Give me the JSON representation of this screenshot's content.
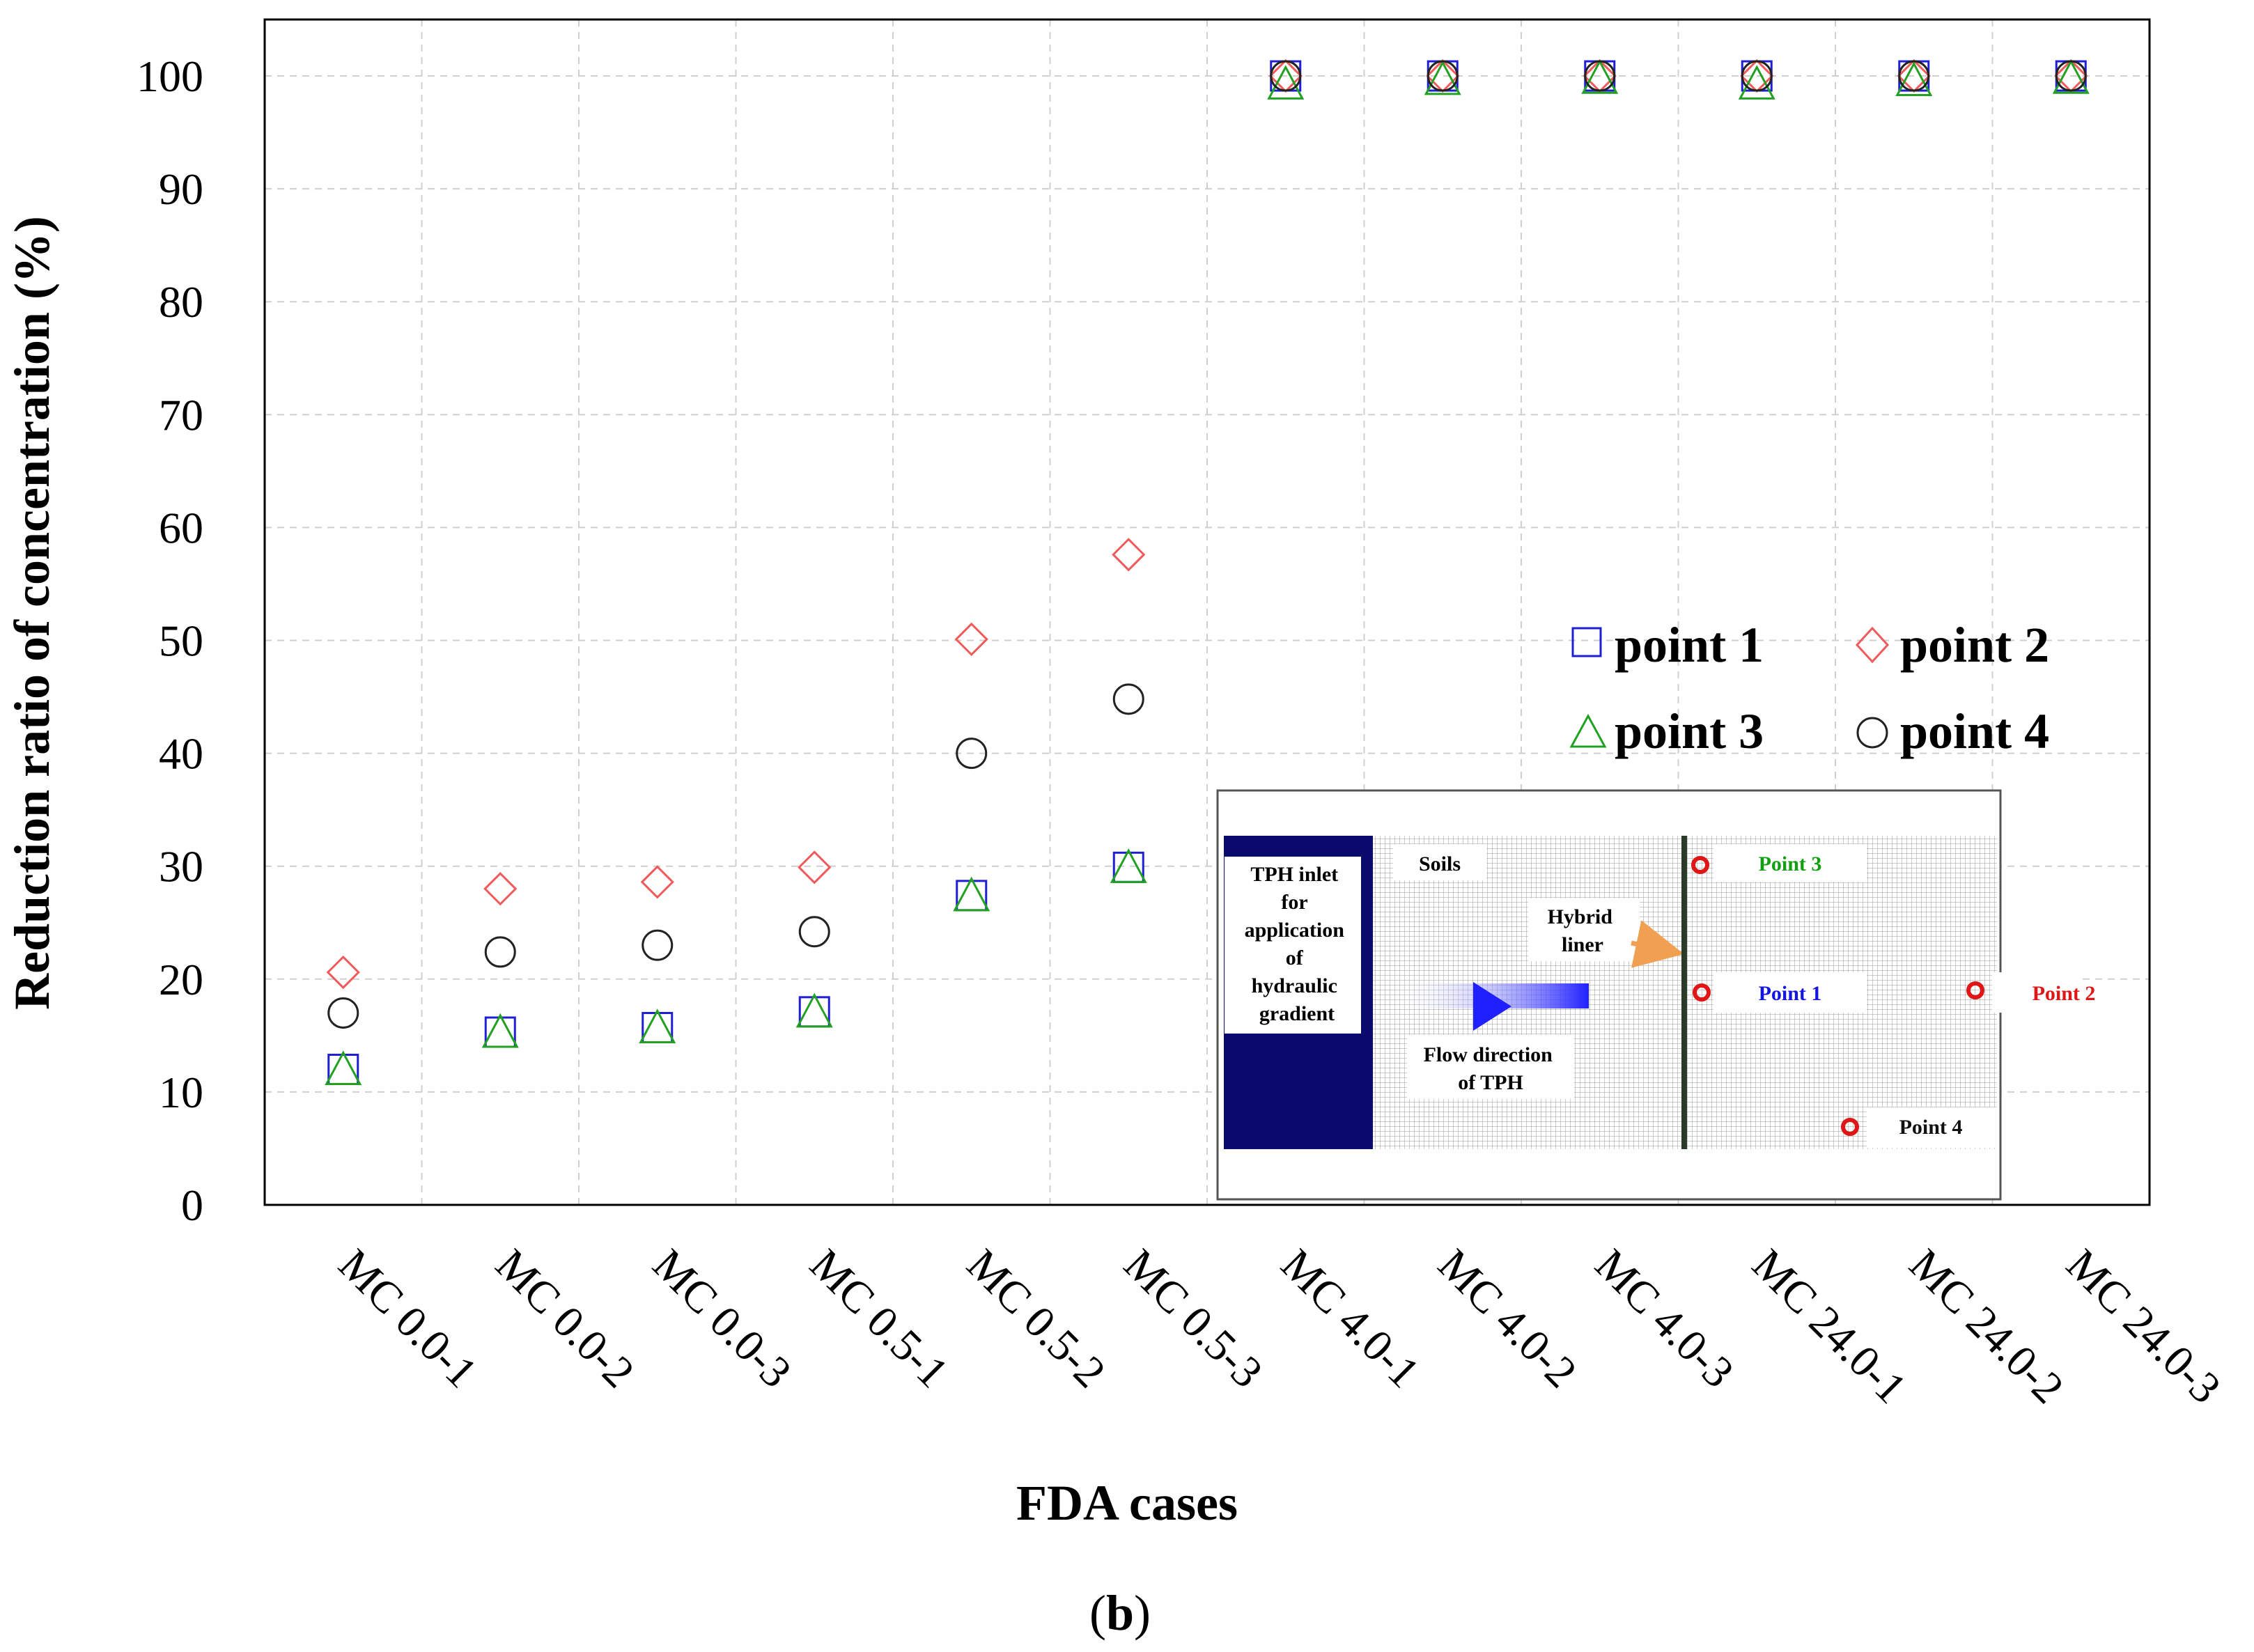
{
  "chart_data": {
    "type": "scatter",
    "title": "",
    "xlabel": "FDA cases",
    "ylabel": "Reduction ratio of concentration (%)",
    "ylim": [
      0,
      105
    ],
    "yticks": [
      0,
      10,
      20,
      30,
      40,
      50,
      60,
      70,
      80,
      90,
      100
    ],
    "grid": true,
    "legend_position": "right, upper-middle",
    "categories": [
      "MC 0.0-1",
      "MC 0.0-2",
      "MC 0.0-3",
      "MC 0.5-1",
      "MC 0.5-2",
      "MC 0.5-3",
      "MC 4.0-1",
      "MC 4.0-2",
      "MC 4.0-3",
      "MC 24.0-1",
      "MC 24.0-2",
      "MC 24.0-3"
    ],
    "series": [
      {
        "name": "point 1",
        "marker": "square",
        "color": "#1f1fd6",
        "values": [
          12,
          15.3,
          15.7,
          17.1,
          27.4,
          29.9,
          100,
          100,
          100,
          100,
          100,
          100
        ]
      },
      {
        "name": "point 2",
        "marker": "diamond",
        "color": "#f05a5a",
        "values": [
          20.6,
          28,
          28.6,
          29.9,
          50.1,
          57.6,
          100,
          100,
          100,
          100,
          100,
          100
        ]
      },
      {
        "name": "point 3",
        "marker": "triangle",
        "color": "#22a022",
        "values": [
          12,
          15.3,
          15.7,
          17.1,
          27.4,
          29.9,
          99.3,
          99.7,
          99.8,
          99.3,
          99.6,
          99.8
        ]
      },
      {
        "name": "point 4",
        "marker": "circle",
        "color": "#222222",
        "values": [
          17,
          22.4,
          23,
          24.2,
          40,
          44.8,
          100,
          100,
          100,
          100,
          100,
          100
        ]
      }
    ]
  },
  "inset": {
    "inlet_lines": [
      "TPH inlet",
      "for",
      "application",
      "of",
      "hydraulic",
      "gradient"
    ],
    "soils": "Soils",
    "liner_lines": [
      "Hybrid",
      "liner"
    ],
    "flow_lines": [
      "Flow direction",
      "of TPH"
    ],
    "point1": "Point 1",
    "point2": "Point 2",
    "point3": "Point 3",
    "point4": "Point 4",
    "colors": {
      "inlet": "#0a0a6e",
      "point1": "#1515e0",
      "point2": "#e01515",
      "point3": "#12a012",
      "point4": "#111111",
      "arrow": "#f0a050"
    }
  },
  "caption": {
    "letter": "b",
    "open": "(",
    "close": ")"
  }
}
